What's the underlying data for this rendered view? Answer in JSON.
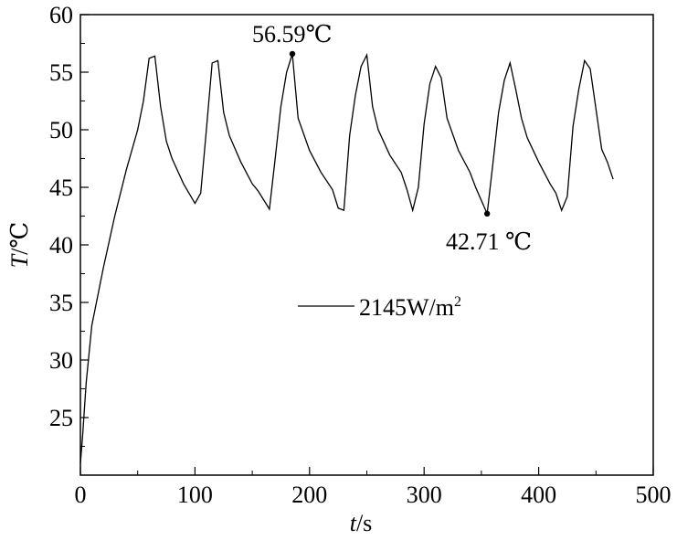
{
  "chart_data": {
    "type": "line",
    "title": "",
    "xlabel": {
      "var": "t",
      "unit": "/s"
    },
    "ylabel": {
      "var": "T",
      "unit": "/℃"
    },
    "xlim": [
      0,
      500
    ],
    "ylim": [
      20,
      60
    ],
    "xticks": [
      0,
      100,
      200,
      300,
      400,
      500
    ],
    "yticks": [
      25,
      30,
      35,
      40,
      45,
      50,
      55,
      60
    ],
    "grid": false,
    "legend_position": "center",
    "series": [
      {
        "name": "2145W/m²",
        "legend_base": "2145W/m",
        "legend_sup": "2",
        "color": "#000000",
        "x": [
          0,
          2,
          5,
          10,
          20,
          30,
          40,
          50,
          55,
          60,
          65,
          70,
          75,
          80,
          90,
          100,
          105,
          110,
          115,
          120,
          125,
          130,
          140,
          150,
          155,
          165,
          170,
          175,
          180,
          185,
          190,
          200,
          210,
          220,
          225,
          230,
          235,
          240,
          245,
          250,
          255,
          260,
          270,
          280,
          285,
          290,
          295,
          300,
          305,
          310,
          315,
          320,
          330,
          340,
          345,
          355,
          360,
          365,
          370,
          375,
          380,
          385,
          390,
          400,
          410,
          415,
          420,
          425,
          430,
          435,
          440,
          445,
          450,
          455,
          460,
          465
        ],
        "y": [
          21.0,
          23.5,
          28,
          33,
          38,
          42.5,
          46.5,
          50,
          52.5,
          56.2,
          56.4,
          52,
          49,
          47.5,
          45.3,
          43.6,
          44.5,
          50,
          55.8,
          56,
          51.5,
          49.5,
          47.2,
          45.3,
          44.7,
          43.1,
          47.5,
          52,
          55,
          56.59,
          51,
          48.2,
          46.3,
          44.8,
          43.2,
          43,
          49.5,
          53,
          55.5,
          56.5,
          52,
          50,
          47.8,
          46.3,
          44.8,
          43,
          45,
          50.5,
          54,
          55.5,
          54.5,
          51,
          48.2,
          46.3,
          45,
          42.71,
          47,
          51.5,
          54.3,
          55.8,
          53.5,
          51,
          49.3,
          47.2,
          45.3,
          44.5,
          43,
          44.2,
          50.3,
          53.5,
          56,
          55.3,
          51.8,
          48.3,
          47.2,
          45.7
        ]
      }
    ],
    "annotations": [
      {
        "label": "56.59℃",
        "x": 185,
        "y": 56.59
      },
      {
        "label": "42.71 ℃",
        "x": 355,
        "y": 42.71
      }
    ]
  }
}
